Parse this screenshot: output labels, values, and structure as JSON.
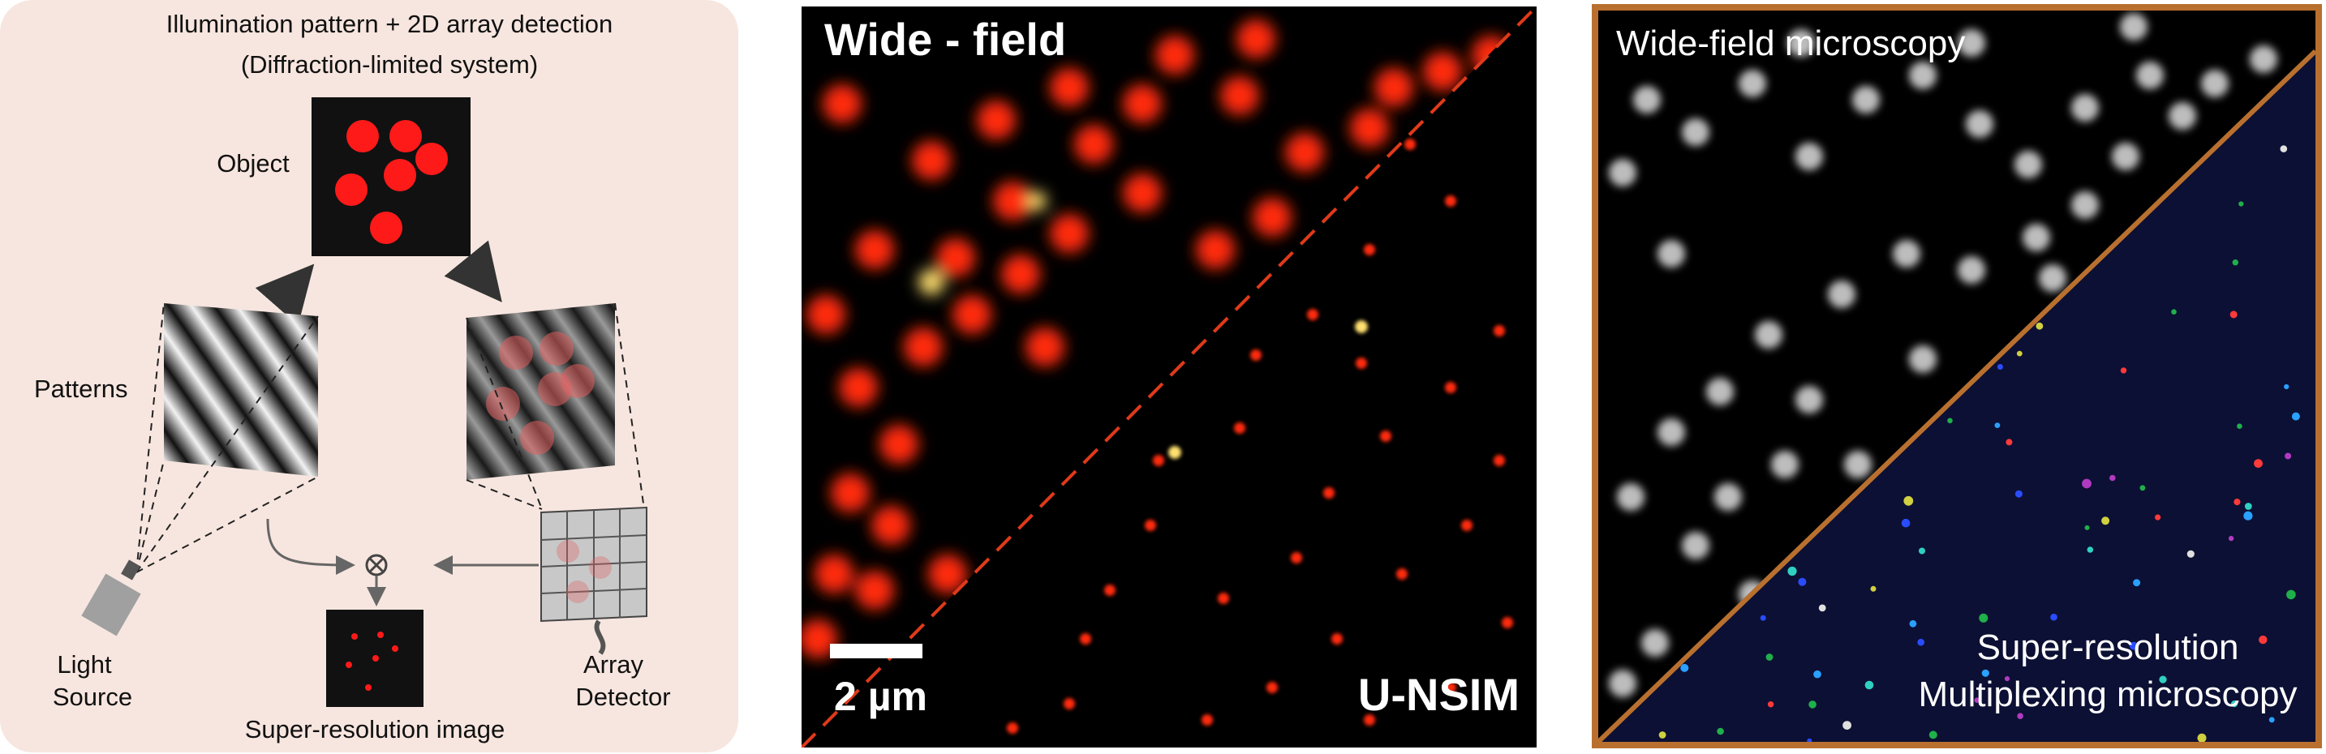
{
  "setup": {
    "title_line1": "Illumination pattern + 2D array detection",
    "title_line2": "(Diffraction-limited system)",
    "object_label": "Object",
    "patterns_label": "Patterns",
    "light_source_line1": "Light",
    "light_source_line2": "Source",
    "array_detector_line1": "Array",
    "array_detector_line2": "Detector",
    "result_label": "Super-resolution image",
    "colors": {
      "background": "#f7e6df",
      "spot": "#ff1a1a"
    }
  },
  "comparison": {
    "wide_field_label": "Wide - field",
    "scale_bar_label": "2 µm",
    "method_label": "U-NSIM",
    "colors": {
      "spot": "#ff2a0a",
      "highlight": "#ffe070",
      "divider": "#e03a1a"
    }
  },
  "multiplex": {
    "wide_field_label": "Wide-field microscopy",
    "super_res_line1": "Super-resolution",
    "super_res_line2": "Multiplexing microscopy",
    "colors": {
      "frame": "#b9702f",
      "spots_grey": "#bdbdbd",
      "background_sr": "#0c1034"
    }
  }
}
